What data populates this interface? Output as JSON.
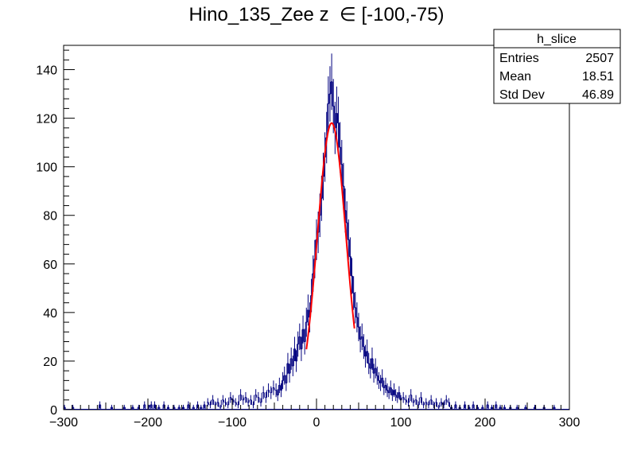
{
  "chart_data": {
    "type": "histogram",
    "title": "Hino_135_Zee z  ∈ [-100,-75)",
    "xlabel": "",
    "ylabel": "",
    "xlim": [
      -300,
      300
    ],
    "ylim": [
      0,
      150
    ],
    "bin_width": 2,
    "x_ticks": [
      -300,
      -200,
      -100,
      0,
      100,
      200,
      300
    ],
    "x_tick_labels": [
      "−300",
      "−200",
      "−100",
      "0",
      "100",
      "200",
      "300"
    ],
    "y_ticks": [
      0,
      20,
      40,
      60,
      80,
      100,
      120,
      140
    ],
    "y_tick_labels": [
      "0",
      "20",
      "40",
      "60",
      "80",
      "100",
      "120",
      "140"
    ],
    "grid": false,
    "hist_color": "#00007f",
    "fit_color": "#ff0000",
    "fit": {
      "type": "gaussian",
      "amplitude": 118,
      "mean": 18,
      "sigma": 17,
      "range": [
        -12,
        45
      ]
    },
    "series": [
      {
        "name": "h_slice",
        "points": [
          [
            -299,
            1
          ],
          [
            -289,
            1
          ],
          [
            -257,
            2
          ],
          [
            -243,
            1
          ],
          [
            -228,
            1
          ],
          [
            -218,
            1
          ],
          [
            -211,
            1
          ],
          [
            -204,
            2
          ],
          [
            -199,
            1
          ],
          [
            -196,
            2
          ],
          [
            -192,
            2
          ],
          [
            -187,
            1
          ],
          [
            -181,
            2
          ],
          [
            -176,
            1
          ],
          [
            -169,
            1
          ],
          [
            -163,
            1
          ],
          [
            -158,
            1
          ],
          [
            -152,
            2
          ],
          [
            -146,
            1
          ],
          [
            -141,
            2
          ],
          [
            -137,
            1
          ],
          [
            -133,
            2
          ],
          [
            -129,
            3
          ],
          [
            -126,
            2
          ],
          [
            -123,
            4
          ],
          [
            -120,
            2
          ],
          [
            -117,
            3
          ],
          [
            -114,
            1
          ],
          [
            -111,
            4
          ],
          [
            -108,
            3
          ],
          [
            -105,
            2
          ],
          [
            -102,
            5
          ],
          [
            -99,
            4
          ],
          [
            -96,
            3
          ],
          [
            -93,
            2
          ],
          [
            -90,
            6
          ],
          [
            -87,
            4
          ],
          [
            -84,
            5
          ],
          [
            -81,
            3
          ],
          [
            -78,
            4
          ],
          [
            -75,
            2
          ],
          [
            -72,
            6
          ],
          [
            -69,
            5
          ],
          [
            -66,
            3
          ],
          [
            -63,
            7
          ],
          [
            -60,
            5
          ],
          [
            -57,
            8
          ],
          [
            -54,
            7
          ],
          [
            -51,
            9
          ],
          [
            -48,
            8
          ],
          [
            -46,
            6
          ],
          [
            -44,
            10
          ],
          [
            -42,
            8
          ],
          [
            -40,
            12
          ],
          [
            -38,
            14
          ],
          [
            -36,
            11
          ],
          [
            -34,
            19
          ],
          [
            -32,
            15
          ],
          [
            -30,
            21
          ],
          [
            -28,
            18
          ],
          [
            -26,
            25
          ],
          [
            -24,
            20
          ],
          [
            -22,
            27
          ],
          [
            -20,
            30
          ],
          [
            -18,
            25
          ],
          [
            -16,
            33
          ],
          [
            -14,
            28
          ],
          [
            -12,
            36
          ],
          [
            -10,
            41
          ],
          [
            -8,
            38
          ],
          [
            -6,
            47
          ],
          [
            -4,
            56
          ],
          [
            -2,
            62
          ],
          [
            0,
            70
          ],
          [
            2,
            73
          ],
          [
            4,
            80
          ],
          [
            6,
            87
          ],
          [
            8,
            96
          ],
          [
            10,
            104
          ],
          [
            12,
            112
          ],
          [
            14,
            126
          ],
          [
            16,
            130
          ],
          [
            18,
            135
          ],
          [
            20,
            125
          ],
          [
            22,
            116
          ],
          [
            24,
            122
          ],
          [
            26,
            118
          ],
          [
            28,
            108
          ],
          [
            30,
            101
          ],
          [
            32,
            92
          ],
          [
            34,
            82
          ],
          [
            36,
            77
          ],
          [
            38,
            70
          ],
          [
            40,
            63
          ],
          [
            42,
            55
          ],
          [
            44,
            48
          ],
          [
            46,
            42
          ],
          [
            48,
            38
          ],
          [
            50,
            34
          ],
          [
            52,
            29
          ],
          [
            54,
            30
          ],
          [
            56,
            26
          ],
          [
            58,
            22
          ],
          [
            60,
            24
          ],
          [
            62,
            19
          ],
          [
            64,
            17
          ],
          [
            66,
            21
          ],
          [
            68,
            15
          ],
          [
            70,
            17
          ],
          [
            72,
            14
          ],
          [
            74,
            12
          ],
          [
            76,
            11
          ],
          [
            78,
            13
          ],
          [
            80,
            9
          ],
          [
            82,
            10
          ],
          [
            84,
            8
          ],
          [
            86,
            7
          ],
          [
            88,
            9
          ],
          [
            90,
            6
          ],
          [
            92,
            8
          ],
          [
            94,
            6
          ],
          [
            96,
            5
          ],
          [
            98,
            7
          ],
          [
            100,
            4
          ],
          [
            103,
            5
          ],
          [
            106,
            4
          ],
          [
            109,
            3
          ],
          [
            112,
            6
          ],
          [
            115,
            3
          ],
          [
            118,
            4
          ],
          [
            121,
            2
          ],
          [
            124,
            5
          ],
          [
            127,
            2
          ],
          [
            130,
            3
          ],
          [
            133,
            2
          ],
          [
            136,
            4
          ],
          [
            139,
            2
          ],
          [
            142,
            3
          ],
          [
            145,
            1
          ],
          [
            148,
            3
          ],
          [
            151,
            2
          ],
          [
            154,
            4
          ],
          [
            157,
            3
          ],
          [
            160,
            1
          ],
          [
            165,
            2
          ],
          [
            170,
            1
          ],
          [
            176,
            2
          ],
          [
            181,
            1
          ],
          [
            186,
            2
          ],
          [
            191,
            1
          ],
          [
            197,
            1
          ],
          [
            203,
            2
          ],
          [
            208,
            1
          ],
          [
            213,
            2
          ],
          [
            218,
            1
          ],
          [
            223,
            1
          ],
          [
            230,
            1
          ],
          [
            238,
            1
          ],
          [
            248,
            1
          ],
          [
            259,
            1
          ],
          [
            270,
            1
          ],
          [
            282,
            1
          ]
        ]
      }
    ]
  },
  "stats_box": {
    "title": "h_slice",
    "rows": [
      {
        "label": "Entries",
        "value": "2507"
      },
      {
        "label": "Mean",
        "value": "18.51"
      },
      {
        "label": "Std Dev",
        "value": "46.89"
      }
    ]
  }
}
